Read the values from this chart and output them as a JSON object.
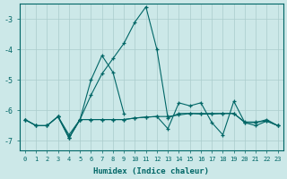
{
  "xlabel": "Humidex (Indice chaleur)",
  "bg_color": "#cce8e8",
  "grid_color": "#aacccc",
  "line_color": "#006666",
  "xlim": [
    -0.5,
    23.5
  ],
  "ylim": [
    -7.3,
    -2.5
  ],
  "yticks": [
    -7,
    -6,
    -5,
    -4,
    -3
  ],
  "xticks": [
    0,
    1,
    2,
    3,
    4,
    5,
    6,
    7,
    8,
    9,
    10,
    11,
    12,
    13,
    14,
    15,
    16,
    17,
    18,
    19,
    20,
    21,
    22,
    23
  ],
  "series": [
    {
      "x": [
        0,
        1,
        2,
        3,
        4,
        5,
        6,
        7,
        8,
        9,
        10,
        11,
        12,
        13,
        14,
        15,
        16,
        17,
        18,
        19,
        20,
        21,
        22,
        23
      ],
      "y": [
        -6.3,
        -6.5,
        -6.5,
        -6.2,
        -6.8,
        -6.3,
        -5.5,
        -4.8,
        -4.3,
        -3.8,
        -3.1,
        -2.6,
        -4.0,
        -6.25,
        -6.1,
        -6.1,
        -6.1,
        -6.1,
        -6.1,
        -6.1,
        -6.4,
        -6.4,
        -6.3,
        -6.5
      ]
    },
    {
      "x": [
        0,
        1,
        2,
        3,
        4,
        5,
        6,
        7,
        8,
        9,
        10,
        11,
        12,
        13,
        14,
        15,
        16,
        17,
        18,
        19,
        20,
        21,
        22,
        23
      ],
      "y": [
        -6.3,
        -6.5,
        -6.5,
        -6.2,
        -6.9,
        -6.3,
        -6.3,
        -6.3,
        -6.3,
        -6.3,
        -6.25,
        -6.22,
        -6.2,
        -6.2,
        -6.15,
        -6.1,
        -6.12,
        -6.12,
        -6.1,
        -6.1,
        -6.38,
        -6.38,
        -6.35,
        -6.5
      ]
    },
    {
      "x": [
        0,
        1,
        2,
        3,
        4,
        5,
        6,
        7,
        8,
        9,
        10,
        11,
        12,
        13,
        14,
        15,
        16,
        17,
        18,
        19,
        20,
        21,
        22,
        23
      ],
      "y": [
        -6.3,
        -6.5,
        -6.5,
        -6.2,
        -6.9,
        -6.3,
        -6.3,
        -6.3,
        -6.3,
        -6.3,
        -6.25,
        -6.22,
        -6.2,
        -6.6,
        -5.75,
        -5.85,
        -5.75,
        -6.4,
        -6.8,
        -5.7,
        -6.4,
        -6.5,
        -6.35,
        -6.5
      ]
    },
    {
      "x": [
        3,
        4,
        5,
        6,
        7,
        8,
        9
      ],
      "y": [
        -6.2,
        -6.9,
        -6.3,
        -5.0,
        -4.2,
        -4.75,
        -6.1
      ]
    }
  ]
}
